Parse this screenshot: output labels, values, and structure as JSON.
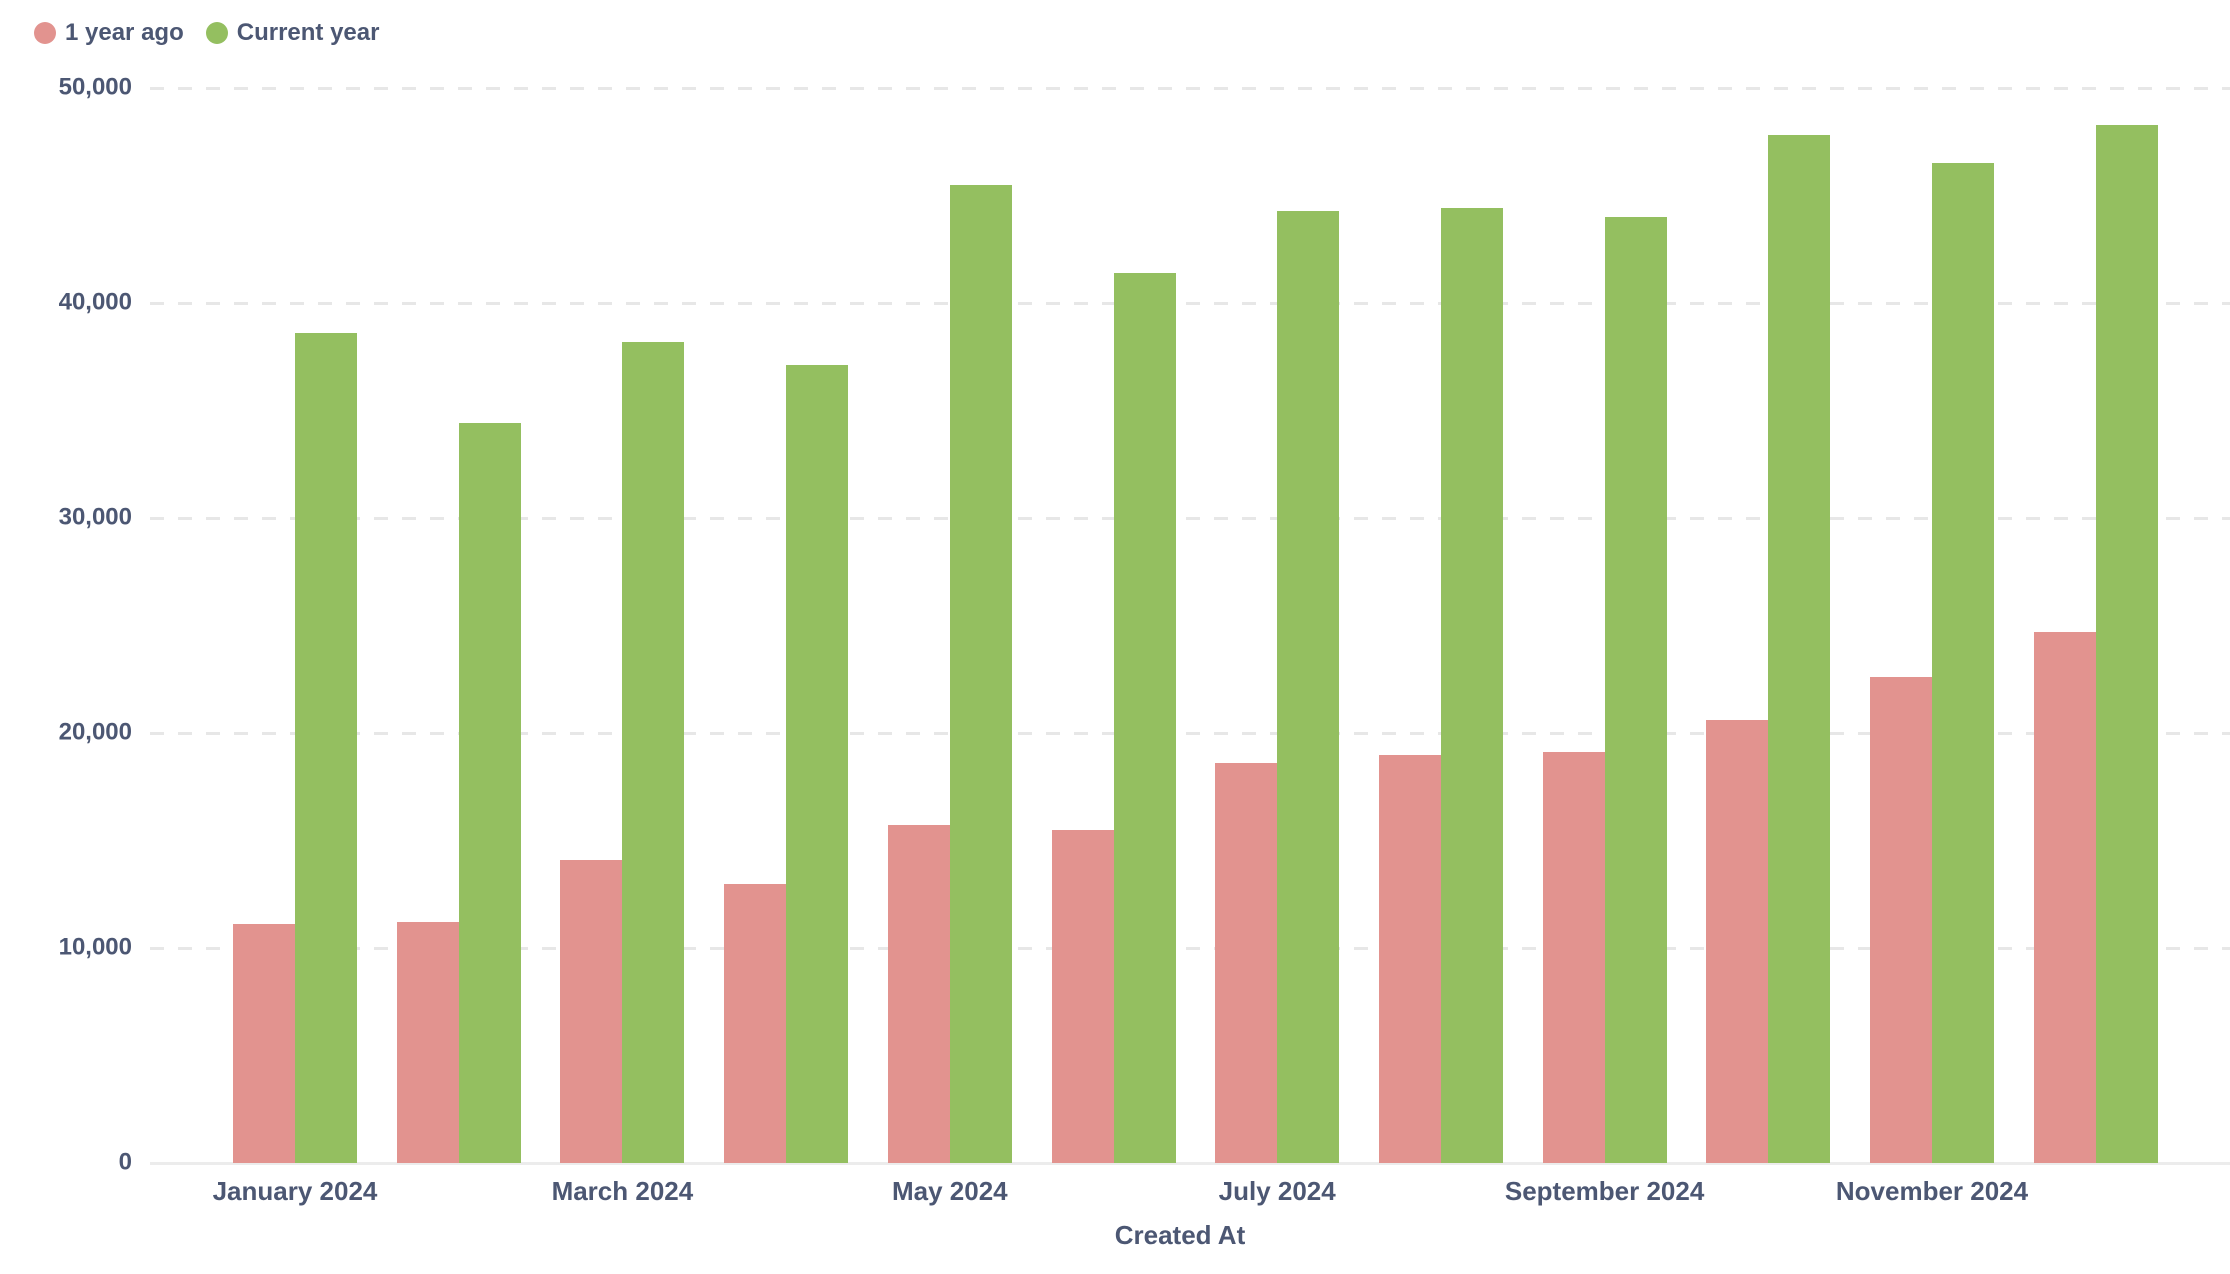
{
  "legend": [
    {
      "label": "1 year ago",
      "color": "#e2938f"
    },
    {
      "label": "Current year",
      "color": "#94bf60"
    }
  ],
  "y_axis": {
    "ticks": [
      {
        "label": "0",
        "value": 0
      },
      {
        "label": "10,000",
        "value": 10000
      },
      {
        "label": "20,000",
        "value": 20000
      },
      {
        "label": "30,000",
        "value": 30000
      },
      {
        "label": "40,000",
        "value": 40000
      },
      {
        "label": "50,000",
        "value": 50000
      }
    ],
    "max": 50000
  },
  "x_axis": {
    "title": "Created At",
    "shown_tick_labels": [
      "January 2024",
      "March 2024",
      "May 2024",
      "July 2024",
      "September 2024",
      "November 2024"
    ]
  },
  "chart_data": {
    "type": "bar",
    "title": "",
    "xlabel": "Created At",
    "ylabel": "",
    "ylim": [
      0,
      50000
    ],
    "grid": "horizontal-dashed",
    "legend_position": "top-left",
    "categories": [
      "January 2024",
      "February 2024",
      "March 2024",
      "April 2024",
      "May 2024",
      "June 2024",
      "July 2024",
      "August 2024",
      "September 2024",
      "October 2024",
      "November 2024",
      "December 2024"
    ],
    "series": [
      {
        "name": "1 year ago",
        "color": "#e2938f",
        "values": [
          11100,
          11200,
          14100,
          13000,
          15700,
          15500,
          18600,
          19000,
          19100,
          20600,
          22600,
          24700
        ]
      },
      {
        "name": "Current year",
        "color": "#94bf60",
        "values": [
          38600,
          34400,
          38200,
          37100,
          45500,
          41400,
          44300,
          44400,
          44000,
          47800,
          46500,
          48300
        ]
      }
    ]
  }
}
